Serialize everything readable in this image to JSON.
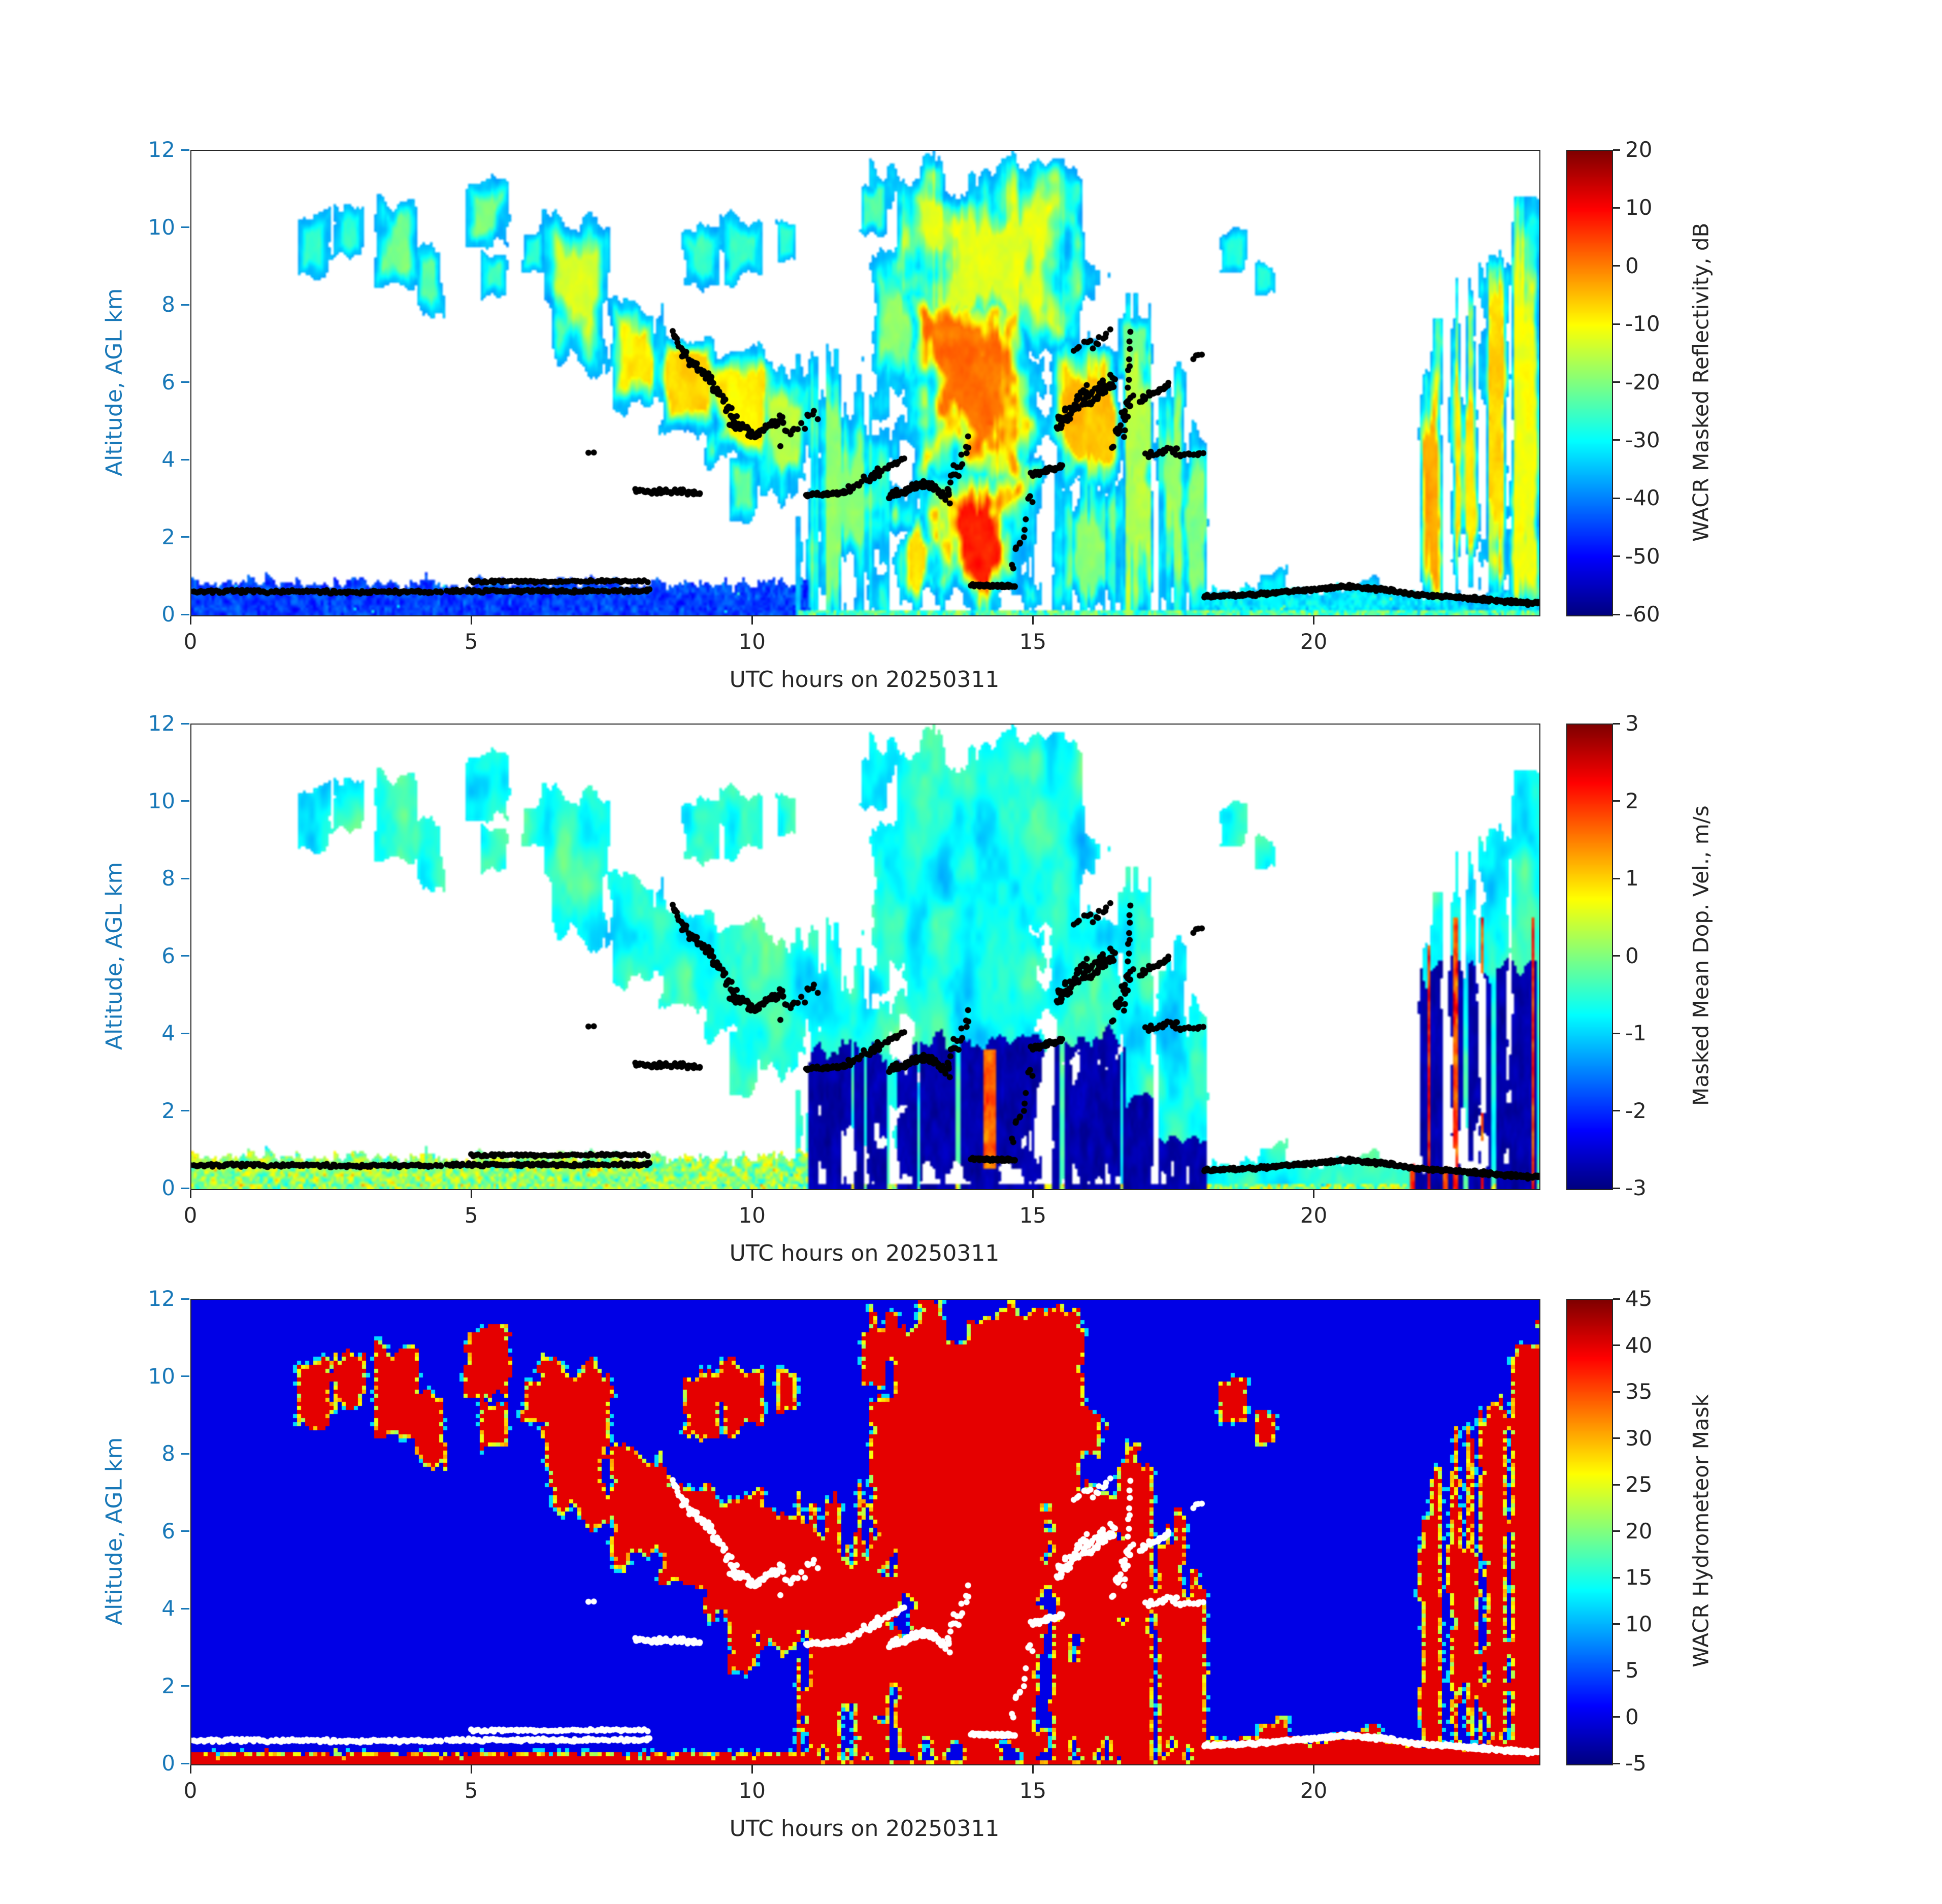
{
  "figure": {
    "background": "#ffffff",
    "axis_text_color": "#262626",
    "y_axis_color": "#1878b8",
    "colormap": "jet"
  },
  "chart_data": {
    "type": "heatmap",
    "x": {
      "label": "UTC hours on 20250311",
      "lim": [
        0,
        24
      ],
      "ticks": [
        0,
        5,
        10,
        15,
        20
      ]
    },
    "y": {
      "label": "Altitude, AGL km",
      "lim": [
        0,
        12
      ],
      "ticks": [
        0,
        2,
        4,
        6,
        8,
        10,
        12
      ]
    },
    "panels": [
      {
        "name": "reflectivity",
        "colorbar_label": "WACR Masked Reflectivity, dB",
        "clim": [
          -60,
          20
        ],
        "cticks": [
          20,
          10,
          0,
          -10,
          -20,
          -30,
          -40,
          -50,
          -60
        ]
      },
      {
        "name": "doppler-velocity",
        "colorbar_label": "Masked Mean Dop. Vel., m/s",
        "clim": [
          -3,
          3
        ],
        "cticks": [
          3,
          2,
          1,
          0,
          -1,
          -2,
          -3
        ]
      },
      {
        "name": "hydrometeor-mask",
        "colorbar_label": "WACR Hydrometeor Mask",
        "clim": [
          -5,
          45
        ],
        "cticks": [
          45,
          40,
          35,
          30,
          25,
          20,
          15,
          10,
          5,
          0,
          -5
        ]
      }
    ],
    "clouds": [
      [
        1.85,
        2.45,
        8.6,
        10.4,
        -26,
        0.25
      ],
      [
        2.5,
        3.1,
        9.2,
        10.6,
        -27,
        0.25
      ],
      [
        3.3,
        4.05,
        8.6,
        10.9,
        -21,
        0.25
      ],
      [
        3.95,
        4.5,
        7.8,
        9.7,
        -23,
        0.2
      ],
      [
        4.85,
        5.7,
        9.4,
        11.2,
        -20,
        0.2
      ],
      [
        5.15,
        5.65,
        8.2,
        9.4,
        -25,
        0.2
      ],
      [
        5.9,
        6.25,
        8.9,
        9.9,
        -27,
        0.2
      ],
      [
        6.3,
        7.55,
        6.2,
        10.4,
        -13,
        0.25
      ],
      [
        7.4,
        8.45,
        5.3,
        8.3,
        -9,
        0.2
      ],
      [
        8.3,
        9.45,
        4.6,
        7.4,
        -7,
        0.2
      ],
      [
        8.7,
        9.45,
        8.4,
        10.0,
        -26,
        0.3
      ],
      [
        9.5,
        10.25,
        8.6,
        10.2,
        -26,
        0.3
      ],
      [
        9.0,
        10.45,
        3.6,
        6.8,
        -9,
        0.2
      ],
      [
        10.1,
        11.1,
        2.9,
        6.2,
        -16,
        0.3
      ],
      [
        9.55,
        10.1,
        2.4,
        4.2,
        -21,
        0.2
      ],
      [
        10.45,
        10.75,
        9.2,
        10.1,
        -27,
        0.3
      ],
      [
        10.95,
        12.4,
        0.05,
        6.5,
        -19,
        0.75
      ],
      [
        11.9,
        12.35,
        9.9,
        11.1,
        -24,
        0.3
      ],
      [
        12.0,
        12.95,
        5.5,
        9.9,
        -19,
        0.3
      ],
      [
        12.3,
        16.1,
        6.5,
        11.6,
        -12,
        0.3
      ],
      [
        12.45,
        15.3,
        2.5,
        9.2,
        1,
        0.15
      ],
      [
        12.9,
        15.2,
        0.05,
        4.1,
        8,
        0.2
      ],
      [
        12.55,
        13.45,
        0.05,
        2.7,
        -7,
        0.5
      ],
      [
        15.25,
        16.6,
        3.3,
        7.3,
        -5,
        0.3
      ],
      [
        15.3,
        16.65,
        0.05,
        3.5,
        -19,
        0.8
      ],
      [
        16.6,
        17.15,
        0.05,
        7.5,
        -16,
        0.7
      ],
      [
        17.1,
        17.7,
        0.05,
        6.2,
        -18,
        0.75
      ],
      [
        17.65,
        18.1,
        0.05,
        4.3,
        -20,
        0.75
      ],
      [
        16.5,
        17.1,
        6.2,
        7.7,
        -21,
        0.3
      ],
      [
        18.3,
        18.8,
        8.8,
        9.9,
        -27,
        0.3
      ],
      [
        18.95,
        19.3,
        8.3,
        9.1,
        -28,
        0.3
      ],
      [
        19.0,
        19.45,
        0.0,
        1.15,
        -30,
        0.4
      ],
      [
        20.6,
        21.1,
        0.0,
        0.9,
        -32,
        0.4
      ],
      [
        21.75,
        22.25,
        0.05,
        6.9,
        -3,
        0.85
      ],
      [
        22.35,
        23.05,
        0.05,
        7.9,
        -8,
        0.75
      ],
      [
        22.9,
        23.55,
        0.05,
        9.7,
        -7,
        0.7
      ],
      [
        23.45,
        24.0,
        0.05,
        10.0,
        -11,
        0.7
      ],
      [
        22.95,
        23.4,
        8.0,
        9.4,
        -22,
        0.3
      ],
      [
        23.92,
        24.0,
        0.05,
        11.3,
        -38,
        0.2
      ]
    ],
    "low_bands": [
      [
        0,
        11.05,
        0.85,
        -45
      ],
      [
        18.0,
        21.4,
        0.7,
        -31
      ],
      [
        21.4,
        24.0,
        0.55,
        -33
      ]
    ],
    "precip_columns": [
      [
        10.95,
        12.4,
        3.6
      ],
      [
        12.55,
        15.2,
        3.7
      ],
      [
        15.3,
        16.65,
        3.9
      ],
      [
        16.6,
        17.2,
        2.4
      ],
      [
        17.2,
        18.1,
        1.3
      ],
      [
        21.75,
        24.0,
        5.8
      ]
    ],
    "updraft_columns": [
      [
        14.12,
        14.32,
        0.5,
        3.6
      ]
    ],
    "dot_tracks": [
      [
        0.0,
        4.45,
        0.62,
        0.6,
        150,
        0.05
      ],
      [
        4.55,
        8.15,
        0.63,
        0.63,
        120,
        0.05
      ],
      [
        5.0,
        8.1,
        0.87,
        0.88,
        80,
        0.04
      ],
      [
        7.9,
        9.05,
        3.22,
        3.18,
        45,
        0.09
      ],
      [
        7.05,
        7.15,
        4.2,
        4.2,
        2,
        0.03
      ],
      [
        8.55,
        8.78,
        7.35,
        6.8,
        12,
        0.12
      ],
      [
        8.75,
        9.2,
        6.75,
        6.15,
        26,
        0.15
      ],
      [
        9.2,
        9.7,
        6.15,
        5.0,
        30,
        0.2
      ],
      [
        9.6,
        10.1,
        5.0,
        4.6,
        28,
        0.15
      ],
      [
        10.05,
        10.55,
        4.75,
        5.1,
        22,
        0.15
      ],
      [
        10.5,
        11.15,
        4.6,
        5.3,
        14,
        0.3
      ],
      [
        10.95,
        11.65,
        3.12,
        3.16,
        40,
        0.05
      ],
      [
        11.6,
        12.25,
        3.2,
        3.7,
        24,
        0.12
      ],
      [
        12.2,
        12.7,
        3.7,
        4.05,
        16,
        0.1
      ],
      [
        12.4,
        13.1,
        3.05,
        3.45,
        40,
        0.12
      ],
      [
        13.05,
        13.5,
        3.45,
        3.0,
        24,
        0.15
      ],
      [
        13.45,
        13.85,
        3.3,
        4.35,
        16,
        0.35
      ],
      [
        13.9,
        14.65,
        0.78,
        0.75,
        60,
        0.04
      ],
      [
        14.6,
        15.0,
        1.0,
        3.4,
        13,
        0.55
      ],
      [
        14.95,
        15.5,
        3.62,
        3.85,
        30,
        0.08
      ],
      [
        15.4,
        15.95,
        4.9,
        5.8,
        45,
        0.28
      ],
      [
        15.9,
        16.45,
        5.5,
        6.1,
        40,
        0.26
      ],
      [
        16.4,
        16.75,
        4.4,
        5.6,
        18,
        0.3
      ],
      [
        16.62,
        16.72,
        4.6,
        7.3,
        14,
        0.12
      ],
      [
        16.9,
        17.4,
        5.55,
        5.95,
        24,
        0.12
      ],
      [
        17.0,
        17.55,
        4.15,
        4.3,
        18,
        0.1
      ],
      [
        17.55,
        18.0,
        4.1,
        4.2,
        14,
        0.06
      ],
      [
        17.85,
        17.97,
        6.65,
        6.75,
        4,
        0.05
      ],
      [
        16.05,
        16.35,
        7.0,
        7.35,
        8,
        0.12
      ],
      [
        15.7,
        16.0,
        6.85,
        7.1,
        6,
        0.1
      ],
      [
        18.05,
        19.0,
        0.48,
        0.55,
        55,
        0.05
      ],
      [
        19.0,
        20.6,
        0.55,
        0.75,
        100,
        0.05
      ],
      [
        20.6,
        21.6,
        0.75,
        0.6,
        65,
        0.05
      ],
      [
        21.6,
        22.7,
        0.55,
        0.45,
        65,
        0.05
      ],
      [
        22.7,
        24.0,
        0.45,
        0.3,
        85,
        0.06
      ]
    ]
  }
}
